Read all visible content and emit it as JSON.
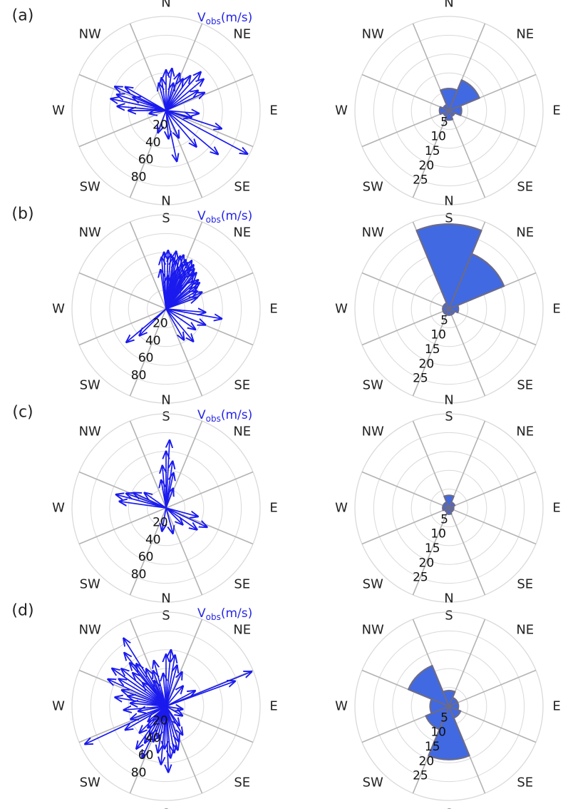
{
  "figure": {
    "direction_labels": [
      "N",
      "NE",
      "E",
      "SE",
      "S",
      "SW",
      "W",
      "NW"
    ],
    "colors": {
      "arrow": "#1a1aee",
      "bar_fill": "#4169e1",
      "bar_edge": "#6b6b8a",
      "grid": "#d9d9d9",
      "spoke": "#b3b3b3",
      "legend_text": "#2626e6"
    },
    "arrow_plot": {
      "legend_main": "V",
      "legend_sub": "obs",
      "legend_unit": "(m/s)",
      "radial_ticks": [
        "20",
        "40",
        "60",
        "80"
      ],
      "r_max": 100
    },
    "rose_plot": {
      "radial_ticks": [
        "5",
        "10",
        "15",
        "20",
        "25"
      ],
      "r_max": 30
    }
  },
  "panels": [
    {
      "label": "(a)",
      "show_legend": true
    },
    {
      "label": "(b)",
      "show_legend": true
    },
    {
      "label": "(c)",
      "show_legend": true
    },
    {
      "label": "(d)",
      "show_legend": true
    }
  ],
  "chart_data": [
    {
      "type": "scatter",
      "panel": "(a)",
      "plot": "arrows",
      "r_unit": "m/s",
      "rlim": [
        0,
        100
      ],
      "arrows": [
        {
          "dir_deg": 0,
          "speed": 43
        },
        {
          "dir_deg": 8,
          "speed": 45
        },
        {
          "dir_deg": -8,
          "speed": 35
        },
        {
          "dir_deg": -15,
          "speed": 30
        },
        {
          "dir_deg": 20,
          "speed": 42
        },
        {
          "dir_deg": 28,
          "speed": 38
        },
        {
          "dir_deg": 35,
          "speed": 45
        },
        {
          "dir_deg": 42,
          "speed": 55
        },
        {
          "dir_deg": 50,
          "speed": 52
        },
        {
          "dir_deg": 58,
          "speed": 40
        },
        {
          "dir_deg": 15,
          "speed": 30
        },
        {
          "dir_deg": 65,
          "speed": 45
        },
        {
          "dir_deg": -60,
          "speed": 50
        },
        {
          "dir_deg": -65,
          "speed": 60
        },
        {
          "dir_deg": -72,
          "speed": 55
        },
        {
          "dir_deg": -78,
          "speed": 60
        },
        {
          "dir_deg": -85,
          "speed": 52
        },
        {
          "dir_deg": -68,
          "speed": 38
        },
        {
          "dir_deg": -90,
          "speed": 40
        },
        {
          "dir_deg": -100,
          "speed": 18
        },
        {
          "dir_deg": 108,
          "speed": 62
        },
        {
          "dir_deg": 118,
          "speed": 98
        },
        {
          "dir_deg": 130,
          "speed": 72
        },
        {
          "dir_deg": 140,
          "speed": 50
        },
        {
          "dir_deg": 155,
          "speed": 32
        },
        {
          "dir_deg": 168,
          "speed": 55
        },
        {
          "dir_deg": 175,
          "speed": 30
        },
        {
          "dir_deg": -160,
          "speed": 25
        },
        {
          "dir_deg": 95,
          "speed": 35
        },
        {
          "dir_deg": 105,
          "speed": 28
        }
      ]
    },
    {
      "type": "bar",
      "panel": "(a)",
      "plot": "rose",
      "categories": [
        "N",
        "NE",
        "E",
        "SE",
        "S",
        "SW",
        "W",
        "NW"
      ],
      "values": [
        7,
        10.5,
        4,
        2,
        3,
        2,
        3,
        2
      ],
      "rlim": [
        0,
        30
      ]
    },
    {
      "type": "scatter",
      "panel": "(b)",
      "plot": "arrows",
      "r_unit": "m/s",
      "rlim": [
        0,
        100
      ],
      "arrows": [
        {
          "dir_deg": -5,
          "speed": 55
        },
        {
          "dir_deg": -2,
          "speed": 60
        },
        {
          "dir_deg": 2,
          "speed": 62
        },
        {
          "dir_deg": 5,
          "speed": 58
        },
        {
          "dir_deg": 8,
          "speed": 55
        },
        {
          "dir_deg": 10,
          "speed": 62
        },
        {
          "dir_deg": 12,
          "speed": 52
        },
        {
          "dir_deg": 15,
          "speed": 58
        },
        {
          "dir_deg": 18,
          "speed": 60
        },
        {
          "dir_deg": 20,
          "speed": 50
        },
        {
          "dir_deg": 22,
          "speed": 56
        },
        {
          "dir_deg": 25,
          "speed": 54
        },
        {
          "dir_deg": 28,
          "speed": 58
        },
        {
          "dir_deg": 30,
          "speed": 50
        },
        {
          "dir_deg": 32,
          "speed": 55
        },
        {
          "dir_deg": 35,
          "speed": 52
        },
        {
          "dir_deg": 38,
          "speed": 48
        },
        {
          "dir_deg": 40,
          "speed": 50
        },
        {
          "dir_deg": 45,
          "speed": 42
        },
        {
          "dir_deg": 48,
          "speed": 46
        },
        {
          "dir_deg": 52,
          "speed": 45
        },
        {
          "dir_deg": 55,
          "speed": 40
        },
        {
          "dir_deg": 60,
          "speed": 38
        },
        {
          "dir_deg": 65,
          "speed": 42
        },
        {
          "dir_deg": 70,
          "speed": 35
        },
        {
          "dir_deg": -8,
          "speed": 42
        },
        {
          "dir_deg": 3,
          "speed": 35
        },
        {
          "dir_deg": 13,
          "speed": 40
        },
        {
          "dir_deg": 25,
          "speed": 38
        },
        {
          "dir_deg": 33,
          "speed": 30
        },
        {
          "dir_deg": 17,
          "speed": 46
        },
        {
          "dir_deg": 27,
          "speed": 44
        },
        {
          "dir_deg": 95,
          "speed": 42
        },
        {
          "dir_deg": 100,
          "speed": 60
        },
        {
          "dir_deg": 112,
          "speed": 45
        },
        {
          "dir_deg": 125,
          "speed": 38
        },
        {
          "dir_deg": 140,
          "speed": 45
        },
        {
          "dir_deg": 150,
          "speed": 38
        },
        {
          "dir_deg": -130,
          "speed": 55
        },
        {
          "dir_deg": -135,
          "speed": 40
        }
      ]
    },
    {
      "type": "bar",
      "panel": "(b)",
      "plot": "rose",
      "categories": [
        "N",
        "NE",
        "E",
        "SE",
        "S",
        "SW",
        "W",
        "NW"
      ],
      "values": [
        27,
        19,
        3,
        2,
        2,
        2,
        2,
        2
      ],
      "rlim": [
        0,
        30
      ]
    },
    {
      "type": "scatter",
      "panel": "(c)",
      "plot": "arrows",
      "r_unit": "m/s",
      "rlim": [
        0,
        100
      ],
      "arrows": [
        {
          "dir_deg": 3,
          "speed": 72
        },
        {
          "dir_deg": 0,
          "speed": 60
        },
        {
          "dir_deg": -5,
          "speed": 45
        },
        {
          "dir_deg": 8,
          "speed": 50
        },
        {
          "dir_deg": 12,
          "speed": 38
        },
        {
          "dir_deg": -10,
          "speed": 30
        },
        {
          "dir_deg": 20,
          "speed": 22
        },
        {
          "dir_deg": -75,
          "speed": 55
        },
        {
          "dir_deg": -70,
          "speed": 45
        },
        {
          "dir_deg": -82,
          "speed": 50
        },
        {
          "dir_deg": -65,
          "speed": 38
        },
        {
          "dir_deg": -55,
          "speed": 28
        },
        {
          "dir_deg": 105,
          "speed": 35
        },
        {
          "dir_deg": 115,
          "speed": 48
        },
        {
          "dir_deg": 125,
          "speed": 40
        },
        {
          "dir_deg": 135,
          "speed": 25
        },
        {
          "dir_deg": 165,
          "speed": 28
        },
        {
          "dir_deg": -170,
          "speed": 25
        }
      ]
    },
    {
      "type": "bar",
      "panel": "(c)",
      "plot": "rose",
      "categories": [
        "N",
        "NE",
        "E",
        "SE",
        "S",
        "SW",
        "W",
        "NW"
      ],
      "values": [
        4,
        2,
        1.5,
        1.5,
        2,
        1.5,
        2,
        2
      ],
      "rlim": [
        0,
        30
      ]
    },
    {
      "type": "scatter",
      "panel": "(d)",
      "plot": "arrows",
      "r_unit": "m/s",
      "rlim": [
        0,
        100
      ],
      "arrows": [
        {
          "dir_deg": -40,
          "speed": 60
        },
        {
          "dir_deg": -35,
          "speed": 55
        },
        {
          "dir_deg": -45,
          "speed": 50
        },
        {
          "dir_deg": -32,
          "speed": 85
        },
        {
          "dir_deg": -38,
          "speed": 72
        },
        {
          "dir_deg": -50,
          "speed": 62
        },
        {
          "dir_deg": -55,
          "speed": 70
        },
        {
          "dir_deg": -60,
          "speed": 58
        },
        {
          "dir_deg": -28,
          "speed": 45
        },
        {
          "dir_deg": -20,
          "speed": 40
        },
        {
          "dir_deg": -15,
          "speed": 50
        },
        {
          "dir_deg": -65,
          "speed": 68
        },
        {
          "dir_deg": -70,
          "speed": 50
        },
        {
          "dir_deg": -75,
          "speed": 42
        },
        {
          "dir_deg": -80,
          "speed": 55
        },
        {
          "dir_deg": -85,
          "speed": 38
        },
        {
          "dir_deg": -25,
          "speed": 30
        },
        {
          "dir_deg": -45,
          "speed": 35
        },
        {
          "dir_deg": 0,
          "speed": 55
        },
        {
          "dir_deg": 5,
          "speed": 60
        },
        {
          "dir_deg": 10,
          "speed": 55
        },
        {
          "dir_deg": 15,
          "speed": 45
        },
        {
          "dir_deg": -5,
          "speed": 35
        },
        {
          "dir_deg": 25,
          "speed": 40
        },
        {
          "dir_deg": 40,
          "speed": 28
        },
        {
          "dir_deg": 68,
          "speed": 98
        },
        {
          "dir_deg": 70,
          "speed": 78
        },
        {
          "dir_deg": 62,
          "speed": 35
        },
        {
          "dir_deg": -115,
          "speed": 95
        },
        {
          "dir_deg": -120,
          "speed": 50
        },
        {
          "dir_deg": -135,
          "speed": 40
        },
        {
          "dir_deg": -145,
          "speed": 55
        },
        {
          "dir_deg": -150,
          "speed": 45
        },
        {
          "dir_deg": -155,
          "speed": 60
        },
        {
          "dir_deg": -160,
          "speed": 40
        },
        {
          "dir_deg": -165,
          "speed": 35
        },
        {
          "dir_deg": -140,
          "speed": 30
        },
        {
          "dir_deg": -170,
          "speed": 50
        },
        {
          "dir_deg": 178,
          "speed": 70
        },
        {
          "dir_deg": 175,
          "speed": 55
        },
        {
          "dir_deg": 170,
          "speed": 50
        },
        {
          "dir_deg": 165,
          "speed": 48
        },
        {
          "dir_deg": 160,
          "speed": 40
        },
        {
          "dir_deg": 150,
          "speed": 35
        },
        {
          "dir_deg": -178,
          "speed": 45
        },
        {
          "dir_deg": -175,
          "speed": 62
        },
        {
          "dir_deg": -150,
          "speed": 35
        },
        {
          "dir_deg": -130,
          "speed": 25
        },
        {
          "dir_deg": 145,
          "speed": 25
        },
        {
          "dir_deg": 120,
          "speed": 20
        },
        {
          "dir_deg": 100,
          "speed": 18
        },
        {
          "dir_deg": -100,
          "speed": 30
        },
        {
          "dir_deg": -95,
          "speed": 45
        },
        {
          "dir_deg": -110,
          "speed": 40
        }
      ]
    },
    {
      "type": "bar",
      "panel": "(d)",
      "plot": "rose",
      "categories": [
        "N",
        "NE",
        "E",
        "SE",
        "S",
        "SW",
        "W",
        "NW"
      ],
      "values": [
        5,
        3,
        3,
        4,
        17,
        8,
        6,
        14
      ],
      "rlim": [
        0,
        30
      ]
    }
  ]
}
